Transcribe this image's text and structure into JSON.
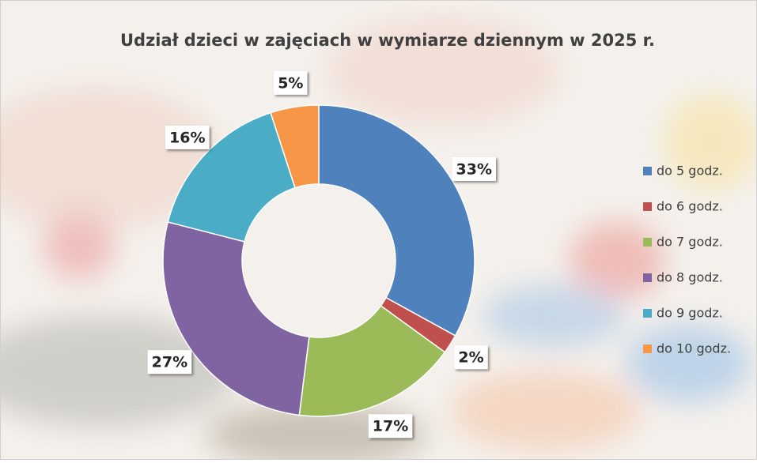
{
  "chart_data": {
    "type": "donut",
    "title": "Udział dzieci w zajęciach w wymiarze dziennym w 2025 r.",
    "categories": [
      "do 5 godz.",
      "do 6 godz.",
      "do 7 godz.",
      "do 8 godz.",
      "do 9 godz.",
      "do 10 godz."
    ],
    "values": [
      33,
      2,
      17,
      27,
      16,
      5
    ],
    "value_labels": [
      "33%",
      "2%",
      "17%",
      "27%",
      "16%",
      "5%"
    ],
    "colors": [
      "#4f81bd",
      "#c0504d",
      "#9bbb59",
      "#8064a2",
      "#4bacc6",
      "#f79646"
    ],
    "legend": "right"
  }
}
